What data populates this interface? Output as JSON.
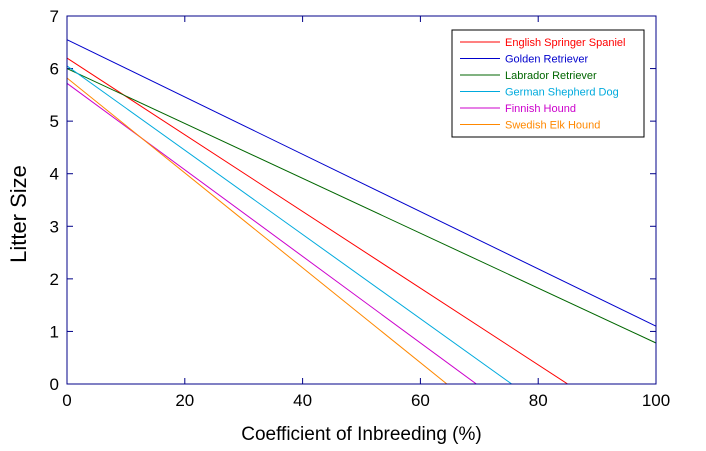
{
  "chart_data": {
    "type": "line",
    "title": "",
    "xlabel": "Coefficient of Inbreeding (%)",
    "ylabel": "Litter Size",
    "xlim": [
      0,
      100
    ],
    "ylim": [
      0,
      7
    ],
    "xticks": [
      0,
      20,
      40,
      60,
      80,
      100
    ],
    "yticks": [
      0,
      1,
      2,
      3,
      4,
      5,
      6,
      7
    ],
    "grid": false,
    "legend_position": "top-right",
    "series": [
      {
        "name": "English Springer Spaniel",
        "color": "#ff0000",
        "x": [
          0,
          85
        ],
        "y": [
          6.2,
          0
        ]
      },
      {
        "name": "Golden Retriever",
        "color": "#0000cc",
        "x": [
          0,
          100
        ],
        "y": [
          6.55,
          1.1
        ]
      },
      {
        "name": "Labrador Retriever",
        "color": "#006600",
        "x": [
          0,
          100
        ],
        "y": [
          6.0,
          0.78
        ]
      },
      {
        "name": "German Shepherd Dog",
        "color": "#00aadd",
        "x": [
          0,
          75.5
        ],
        "y": [
          6.05,
          0
        ]
      },
      {
        "name": "Finnish Hound",
        "color": "#cc00cc",
        "x": [
          0,
          69.5
        ],
        "y": [
          5.72,
          0
        ]
      },
      {
        "name": "Swedish Elk Hound",
        "color": "#ff8800",
        "x": [
          0,
          64.5
        ],
        "y": [
          5.82,
          0
        ]
      }
    ]
  }
}
